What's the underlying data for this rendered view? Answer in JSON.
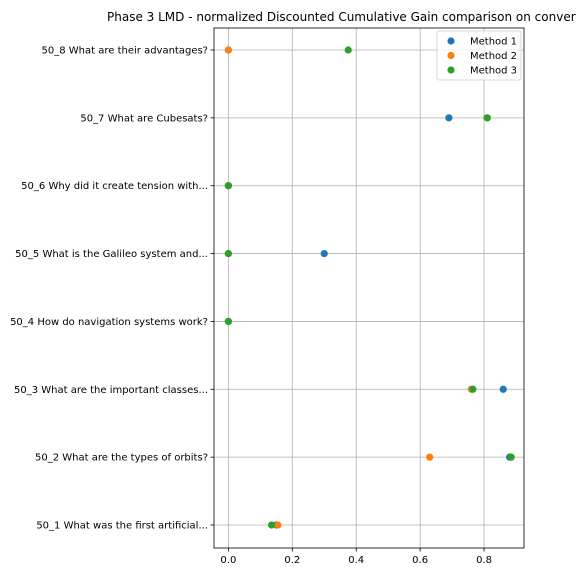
{
  "chart_data": {
    "type": "scatter",
    "title": "Phase 3 LMD - normalized Discounted Cumulative Gain comparison on conver",
    "xlabel": "",
    "ylabel": "",
    "categories": [
      "50_1 What was the first artificial...",
      "50_2 What are the types of orbits?",
      "50_3 What are the important classes...",
      "50_4 How do navigation systems work?",
      "50_5 What is the Galileo system and...",
      "50_6 Why did it create tension with...",
      "50_7 What are Cubesats?",
      "50_8 What are their advantages?"
    ],
    "xlim": [
      -0.045,
      0.925
    ],
    "xticks": [
      0.0,
      0.2,
      0.4,
      0.6,
      0.8
    ],
    "xtick_labels": [
      "0.0",
      "0.2",
      "0.4",
      "0.6",
      "0.8"
    ],
    "grid": true,
    "legend_position": "top-right",
    "series": [
      {
        "name": "Method 1",
        "color": "#1f77b4",
        "values": [
          0.15,
          0.88,
          0.86,
          0.0,
          0.3,
          0.0,
          0.69,
          0.0
        ]
      },
      {
        "name": "Method 2",
        "color": "#ff7f0e",
        "values": [
          0.155,
          0.63,
          0.76,
          0.0,
          0.0,
          0.0,
          0.81,
          0.0
        ]
      },
      {
        "name": "Method 3",
        "color": "#2ca02c",
        "values": [
          0.135,
          0.885,
          0.765,
          0.0,
          0.0,
          0.0,
          0.81,
          0.375
        ]
      }
    ]
  }
}
